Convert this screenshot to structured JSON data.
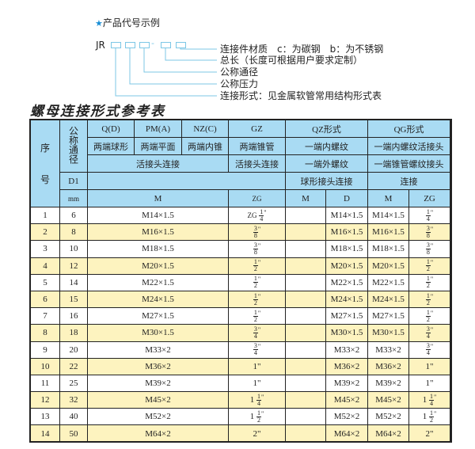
{
  "diagram": {
    "title": "产品代号示例",
    "star_icon": "star-icon",
    "code_prefix": "JR",
    "dash": "-",
    "labels": [
      "连接件材质　c：为碳钢　b：为不锈钢",
      "总长（长度可根据用户要求定制）",
      "公称通径",
      "公称压力",
      "连接形式：见金属软管常用结构形式表"
    ],
    "accent_color": "#7cc7e6"
  },
  "sheet_title": "螺母连接形式参考表",
  "table": {
    "header": {
      "seq_top": "序",
      "seq_bottom": "号",
      "nominal": "公称通径",
      "qd": "Q(D)",
      "pma": "PM(A)",
      "nzc": "NZ(C)",
      "gz": "GZ",
      "qz": "QZ形式",
      "qg": "QG形式",
      "qd_desc": "两端球形",
      "pma_desc": "两端平面",
      "nzc_desc": "两端内锥",
      "gz_desc": "两端锥管",
      "qz_desc1": "一端内螺纹",
      "qg_desc1": "一端内螺纹活接头",
      "union_conn": "活接头连接",
      "gz_conn": "活接头连接",
      "qz_desc2": "一端外螺纹",
      "qg_desc2": "一端锥管螺纹接头",
      "d1": "D1",
      "qz_desc3": "球形接头连接",
      "qg_desc3": "连接",
      "mm": "mm",
      "m": "M",
      "zg": "ZG",
      "qz_m": "M",
      "qz_d": "D",
      "qg_m": "M",
      "qg_zg": "ZG"
    },
    "header_color": "#a9dbf3",
    "stripe_color": "#fdf3bf",
    "rows": [
      {
        "no": "1",
        "d1": "6",
        "m": "M14×1.5",
        "zg": {
          "prefix": "ZG",
          "whole": "",
          "n": "1",
          "d": "4",
          "text": ""
        },
        "qz_m": "",
        "qz_d": "M14×1.5",
        "qg_m": "M14×1.5",
        "qg_zg": {
          "whole": "",
          "n": "1",
          "d": "4",
          "text": ""
        }
      },
      {
        "no": "2",
        "d1": "8",
        "m": "M16×1.5",
        "zg": {
          "prefix": "",
          "whole": "",
          "n": "3",
          "d": "8",
          "text": ""
        },
        "qz_m": "",
        "qz_d": "M16×1.5",
        "qg_m": "M16×1.5",
        "qg_zg": {
          "whole": "",
          "n": "3",
          "d": "8",
          "text": ""
        }
      },
      {
        "no": "3",
        "d1": "10",
        "m": "M18×1.5",
        "zg": {
          "prefix": "",
          "whole": "",
          "n": "3",
          "d": "8",
          "text": ""
        },
        "qz_m": "",
        "qz_d": "M18×1.5",
        "qg_m": "M18×1.5",
        "qg_zg": {
          "whole": "",
          "n": "3",
          "d": "8",
          "text": ""
        }
      },
      {
        "no": "4",
        "d1": "12",
        "m": "M20×1.5",
        "zg": {
          "prefix": "",
          "whole": "",
          "n": "1",
          "d": "2",
          "text": ""
        },
        "qz_m": "",
        "qz_d": "M20×1.5",
        "qg_m": "M20×1.5",
        "qg_zg": {
          "whole": "",
          "n": "1",
          "d": "2",
          "text": ""
        }
      },
      {
        "no": "5",
        "d1": "14",
        "m": "M22×1.5",
        "zg": {
          "prefix": "",
          "whole": "",
          "n": "1",
          "d": "2",
          "text": ""
        },
        "qz_m": "",
        "qz_d": "M22×1.5",
        "qg_m": "M22×1.5",
        "qg_zg": {
          "whole": "",
          "n": "1",
          "d": "2",
          "text": ""
        }
      },
      {
        "no": "6",
        "d1": "15",
        "m": "M24×1.5",
        "zg": {
          "prefix": "",
          "whole": "",
          "n": "1",
          "d": "2",
          "text": ""
        },
        "qz_m": "",
        "qz_d": "M24×1.5",
        "qg_m": "M24×1.5",
        "qg_zg": {
          "whole": "",
          "n": "1",
          "d": "2",
          "text": ""
        }
      },
      {
        "no": "7",
        "d1": "16",
        "m": "M27×1.5",
        "zg": {
          "prefix": "",
          "whole": "",
          "n": "1",
          "d": "2",
          "text": ""
        },
        "qz_m": "",
        "qz_d": "M27×1.5",
        "qg_m": "M27×1.5",
        "qg_zg": {
          "whole": "",
          "n": "1",
          "d": "2",
          "text": ""
        }
      },
      {
        "no": "8",
        "d1": "18",
        "m": "M30×1.5",
        "zg": {
          "prefix": "",
          "whole": "",
          "n": "3",
          "d": "4",
          "text": ""
        },
        "qz_m": "",
        "qz_d": "M30×1.5",
        "qg_m": "M30×1.5",
        "qg_zg": {
          "whole": "",
          "n": "3",
          "d": "4",
          "text": ""
        }
      },
      {
        "no": "9",
        "d1": "20",
        "m": "M33×2",
        "zg": {
          "prefix": "",
          "whole": "",
          "n": "3",
          "d": "4",
          "text": ""
        },
        "qz_m": "",
        "qz_d": "M33×2",
        "qg_m": "M33×2",
        "qg_zg": {
          "whole": "",
          "n": "3",
          "d": "4",
          "text": ""
        }
      },
      {
        "no": "10",
        "d1": "22",
        "m": "M36×2",
        "zg": {
          "text": "1\""
        },
        "qz_m": "",
        "qz_d": "M36×2",
        "qg_m": "M36×2",
        "qg_zg": {
          "text": "1\""
        }
      },
      {
        "no": "11",
        "d1": "25",
        "m": "M39×2",
        "zg": {
          "text": "1\""
        },
        "qz_m": "",
        "qz_d": "M39×2",
        "qg_m": "M39×2",
        "qg_zg": {
          "text": "1\""
        }
      },
      {
        "no": "12",
        "d1": "32",
        "m": "M45×2",
        "zg": {
          "prefix": "",
          "whole": "1",
          "n": "1",
          "d": "4",
          "text": ""
        },
        "qz_m": "",
        "qz_d": "M45×2",
        "qg_m": "M45×2",
        "qg_zg": {
          "whole": "1",
          "n": "1",
          "d": "4",
          "text": ""
        }
      },
      {
        "no": "13",
        "d1": "40",
        "m": "M52×2",
        "zg": {
          "prefix": "",
          "whole": "1",
          "n": "1",
          "d": "2",
          "text": ""
        },
        "qz_m": "",
        "qz_d": "M52×2",
        "qg_m": "M52×2",
        "qg_zg": {
          "whole": "1",
          "n": "1",
          "d": "2",
          "text": ""
        }
      },
      {
        "no": "14",
        "d1": "50",
        "m": "M64×2",
        "zg": {
          "text": "2\""
        },
        "qz_m": "",
        "qz_d": "M64×2",
        "qg_m": "M64×2",
        "qg_zg": {
          "text": "2\""
        }
      }
    ]
  }
}
